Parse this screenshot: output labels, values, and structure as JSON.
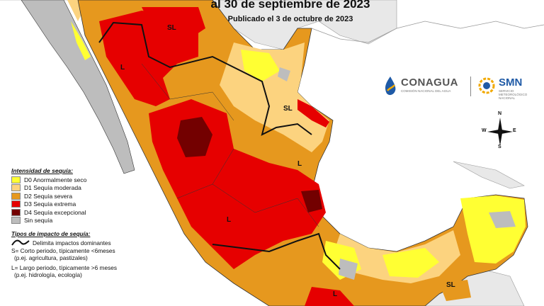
{
  "header": {
    "title": "al 30 de septiembre de 2023",
    "subtitle": "Publicado el 3 de octubre de 2023"
  },
  "legend": {
    "title": "Intensidad de sequía:",
    "items": [
      {
        "label": "D0 Anormalmente seco",
        "color": "#ffff33"
      },
      {
        "label": "D1 Sequía moderada",
        "color": "#fcd37f"
      },
      {
        "label": "D2 Sequía severa",
        "color": "#e6981e"
      },
      {
        "label": "D3 Sequía extrema",
        "color": "#e60000"
      },
      {
        "label": "D4 Sequía excepcional",
        "color": "#730000"
      },
      {
        "label": "Sin sequía",
        "color": "#bdbdbd"
      }
    ]
  },
  "impacts": {
    "title": "Tipos de impacto de sequía:",
    "line_label": "Delimita impactos dominantes",
    "short_1": "S= Corto periodo, típicamente <6meses",
    "short_2": "(p.ej. agricultura, pastizales)",
    "long_1": "L= Largo periodo, típicamente >6 meses",
    "long_2": "(p.ej. hidrología, ecología)"
  },
  "logos": {
    "conagua": "CONAGUA",
    "conagua_sub": "COMISIÓN NACIONAL DEL AGUA",
    "smn": "SMN",
    "smn_sub": "SERVICIO METEOROLÓGICO NACIONAL"
  },
  "map_labels": {
    "sl_north": "SL",
    "l_west": "L",
    "sl_northeast": "SL",
    "l_center": "L",
    "l_west_lower": "L",
    "l_south": "L",
    "sl_southeast": "SL"
  },
  "compass": {
    "n": "N",
    "s": "S",
    "e": "E",
    "w": "W"
  },
  "colors": {
    "ocean": "#ffffff",
    "neighbor": "#e8e8e8",
    "border": "#333333"
  }
}
